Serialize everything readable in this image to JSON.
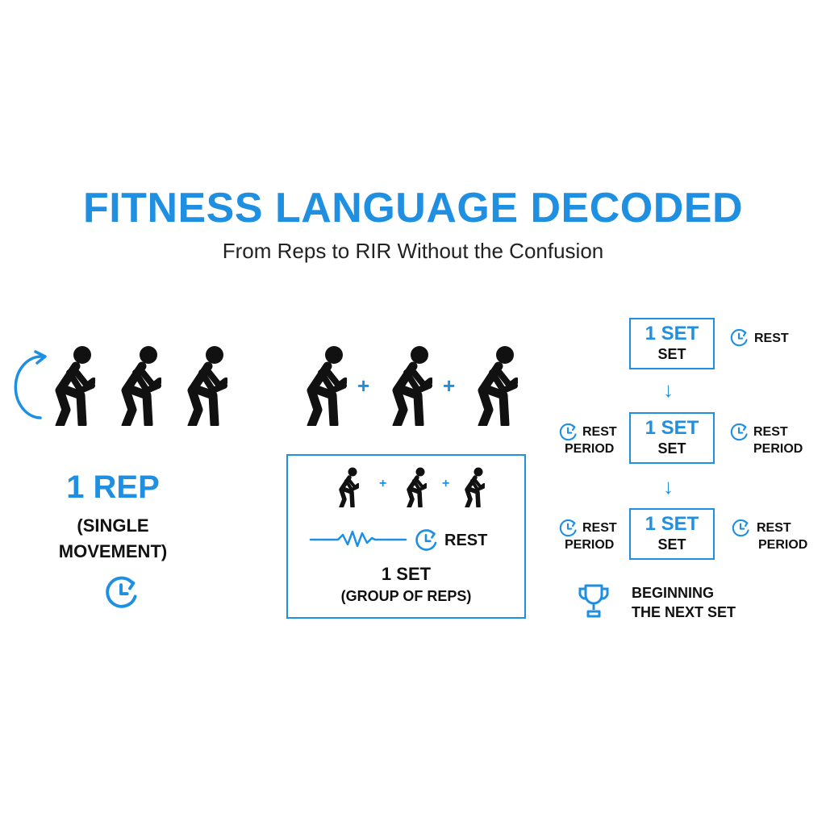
{
  "title": "FITNESS LANGUAGE DECODED",
  "subtitle": "From Reps to RIR Without the Confusion",
  "colors": {
    "accent": "#1E8FE1",
    "figure": "#111111",
    "background": "#FFFFFF"
  },
  "rep_panel": {
    "title": "1 REP",
    "subtitle_line1": "(SINGLE",
    "subtitle_line2": "MOVEMENT)",
    "icons": [
      "curved-arrow-icon",
      "squat-figure-icon",
      "clock-icon"
    ]
  },
  "set_panel": {
    "plus_sign": "+",
    "rest_label": "REST",
    "set_title": "1 SET",
    "set_subtitle": "(GROUP OF REPS)",
    "icons": [
      "squat-figure-icon",
      "wave-line-icon",
      "clock-icon"
    ]
  },
  "flow_panel": {
    "steps": [
      {
        "big": "1 SET",
        "small": "SET",
        "right_rest": [
          "REST"
        ]
      },
      {
        "big": "1 SET",
        "small": "SET",
        "left_rest": [
          "REST",
          "PERIOD"
        ],
        "right_rest": [
          "REST",
          "PERIOD"
        ]
      },
      {
        "big": "1 SET",
        "small": "SET",
        "left_rest": [
          "REST",
          "PERIOD"
        ],
        "right_rest": [
          "REST",
          "PERIOD"
        ]
      }
    ],
    "arrow_glyph": "↓",
    "next_line1": "BEGINNING",
    "next_line2": "THE NEXT SET",
    "icons": [
      "clock-icon",
      "down-arrow-icon",
      "trophy-icon"
    ]
  }
}
